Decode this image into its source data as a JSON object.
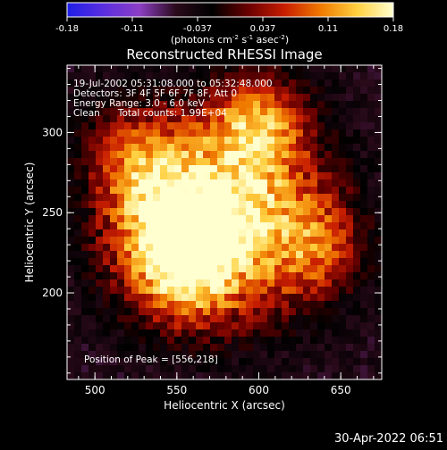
{
  "colorbar": {
    "min": -0.18,
    "max": 0.18,
    "ticks": [
      "-0.18",
      "-0.11",
      "-0.037",
      "0.037",
      "0.11",
      "0.18"
    ],
    "units_prefix": "(photons cm",
    "units_exp1": "-2",
    "units_mid": " s",
    "units_exp2": "-1",
    "units_suffix": " asec",
    "units_exp3": "-2",
    "units_close": ")",
    "stops": [
      "#1e1ee6",
      "#5a2ee0",
      "#8c3fc4",
      "#2a0a1a",
      "#000000",
      "#6a0000",
      "#c81e00",
      "#f07a00",
      "#ffd040",
      "#ffffd0"
    ]
  },
  "chart_data": {
    "type": "heatmap",
    "title": "Reconstructed RHESSI Image",
    "xlabel": "Heliocentric X (arcsec)",
    "ylabel": "Heliocentric Y (arcsec)",
    "x_ticks": [
      "500",
      "550",
      "600",
      "650"
    ],
    "y_ticks": [
      "200",
      "250",
      "300"
    ],
    "xlim": [
      483,
      675
    ],
    "ylim": [
      146,
      342
    ],
    "info_lines": [
      "19-Jul-2002 05:31:08.000 to 05:32:48.000",
      "Detectors: 3F 4F 5F 6F 7F 8F, Att 0",
      "Energy Range: 3.0 - 6.0 keV",
      "Clean      Total counts: 1.99E+04"
    ],
    "peak_label": "Position of Peak = [556,218]",
    "peak": [
      556,
      218
    ],
    "peak_value": 0.18,
    "sources": [
      {
        "x": 556,
        "y": 218,
        "flux": 0.18
      },
      {
        "x": 600,
        "y": 305,
        "flux": 0.14
      },
      {
        "x": 545,
        "y": 255,
        "flux": 0.12
      },
      {
        "x": 585,
        "y": 250,
        "flux": 0.11
      },
      {
        "x": 635,
        "y": 230,
        "flux": 0.09
      },
      {
        "x": 520,
        "y": 290,
        "flux": 0.08
      }
    ]
  },
  "timestamp": "30-Apr-2022 06:51"
}
